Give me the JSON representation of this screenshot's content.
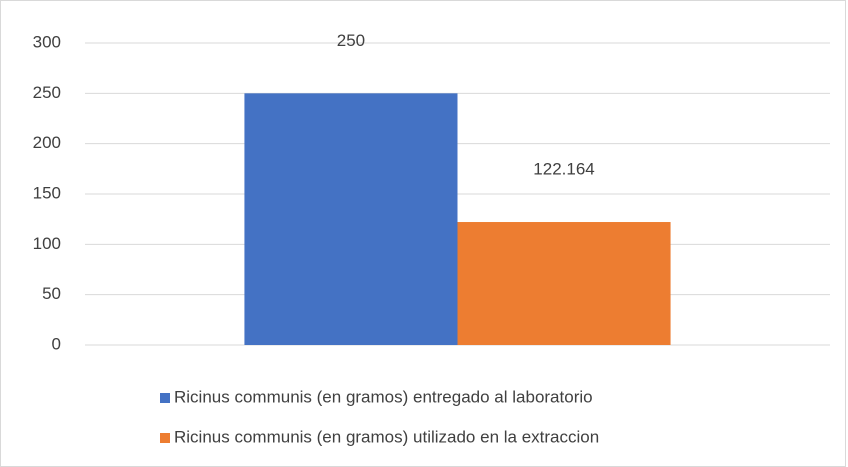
{
  "chart_data": {
    "type": "bar",
    "categories": [
      null
    ],
    "series": [
      {
        "name": "Ricinus communis (en gramos) entregado al laboratorio",
        "color": "#4472c4",
        "values": [
          250
        ]
      },
      {
        "name": "Ricinus communis (en gramos) utilizado en la extraccion",
        "color": "#ed7d31",
        "values": [
          122.164
        ]
      }
    ],
    "ylim": [
      0,
      300
    ],
    "yticks": [
      0,
      50,
      100,
      150,
      200,
      250,
      300
    ],
    "grid": true,
    "legend": "bottom"
  }
}
